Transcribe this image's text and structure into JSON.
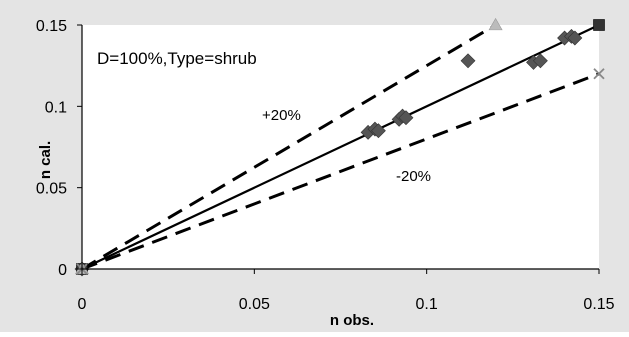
{
  "chart_data": {
    "type": "scatter",
    "title": "",
    "xlabel": "n obs.",
    "ylabel": "n cal.",
    "xlim": [
      0,
      0.15
    ],
    "ylim": [
      0,
      0.15
    ],
    "x_ticks": [
      "0",
      "0.05",
      "0.1",
      "0.15"
    ],
    "y_ticks": [
      "0",
      "0.05",
      "0.1",
      "0.15"
    ],
    "grid": false,
    "legend": "none",
    "annotations": {
      "case_label": "D=100%,Type=shrub",
      "upper_band": "+20%",
      "lower_band": "-20%"
    },
    "lines": {
      "one_to_one": {
        "x": [
          0,
          0.15
        ],
        "y": [
          0,
          0.15
        ],
        "style": "solid",
        "color": "#000000"
      },
      "plus_20": {
        "x": [
          0,
          0.12
        ],
        "y": [
          0,
          0.15
        ],
        "style": "dashed",
        "color": "#000000"
      },
      "minus_20": {
        "x": [
          0,
          0.15
        ],
        "y": [
          0,
          0.12
        ],
        "style": "dashed",
        "color": "#000000"
      }
    },
    "series": [
      {
        "marker": "diamond",
        "color": "#555555",
        "points": [
          [
            0,
            0
          ],
          [
            0.083,
            0.084
          ],
          [
            0.085,
            0.086
          ],
          [
            0.086,
            0.085
          ],
          [
            0.092,
            0.092
          ],
          [
            0.093,
            0.094
          ],
          [
            0.094,
            0.093
          ],
          [
            0.112,
            0.128
          ],
          [
            0.131,
            0.127
          ],
          [
            0.133,
            0.128
          ],
          [
            0.14,
            0.142
          ],
          [
            0.142,
            0.143
          ],
          [
            0.143,
            0.142
          ]
        ]
      },
      {
        "marker": "square",
        "color": "#333333",
        "points": [
          [
            0,
            0
          ],
          [
            0.15,
            0.15
          ]
        ]
      },
      {
        "marker": "triangle",
        "color": "#bbbbbb",
        "points": [
          [
            0,
            0
          ],
          [
            0.12,
            0.15
          ]
        ]
      },
      {
        "marker": "cross",
        "color": "#888888",
        "points": [
          [
            0,
            0
          ],
          [
            0.15,
            0.12
          ]
        ]
      }
    ],
    "colors": {
      "plot_background": "#ffffff",
      "outer_background": "#e4e4e4",
      "axis": "#000000"
    }
  }
}
